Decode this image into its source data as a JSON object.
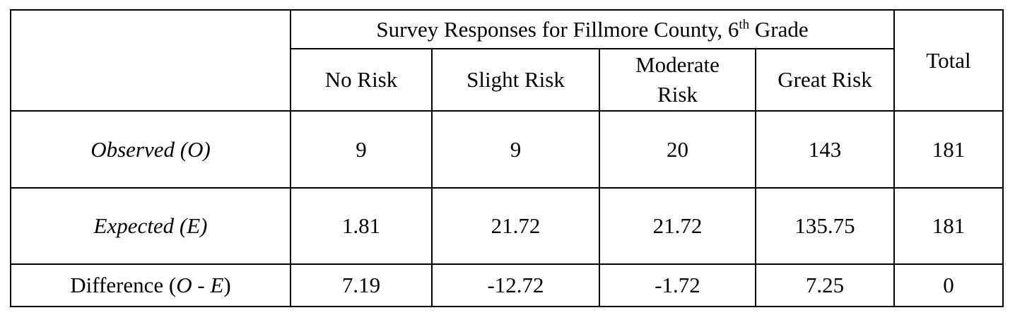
{
  "table": {
    "group_header": {
      "prefix": "Survey Responses for Fillmore County, 6",
      "superscript": "th",
      "suffix": " Grade"
    },
    "total_header": "Total",
    "columns": [
      {
        "line1": "No Risk",
        "line2": ""
      },
      {
        "line1": "Slight Risk",
        "line2": ""
      },
      {
        "line1": "Moderate",
        "line2": "Risk"
      },
      {
        "line1": "Great Risk",
        "line2": ""
      }
    ],
    "rows": [
      {
        "label_main": "Observed (O)",
        "values": [
          "9",
          "9",
          "20",
          "143"
        ],
        "total": "181"
      },
      {
        "label_main": "Expected (E)",
        "values": [
          "1.81",
          "21.72",
          "21.72",
          "135.75"
        ],
        "total": "181"
      },
      {
        "label_prefix": "Difference (",
        "label_o": "O",
        "label_mid": " - ",
        "label_e": "E",
        "label_suffix": ")",
        "values": [
          "7.19",
          "-12.72",
          "-1.72",
          "7.25"
        ],
        "total": "0"
      }
    ]
  }
}
